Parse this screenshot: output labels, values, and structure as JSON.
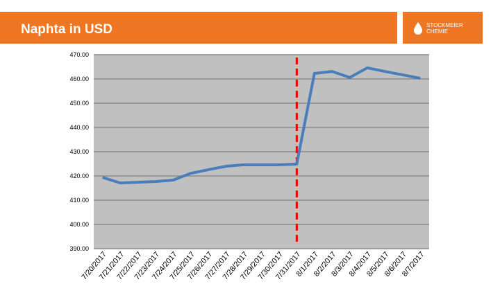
{
  "header": {
    "title": "Naphta in USD",
    "logo_line1": "STOCKMEIER",
    "logo_line2": "CHEMIE"
  },
  "chart_data": {
    "type": "line",
    "categories": [
      "7/20/2017",
      "7/21/2017",
      "7/22/2017",
      "7/23/2017",
      "7/24/2017",
      "7/25/2017",
      "7/26/2017",
      "7/27/2017",
      "7/28/2017",
      "7/29/2017",
      "7/30/2017",
      "7/31/2017",
      "8/1/2017",
      "8/2/2017",
      "8/3/2017",
      "8/4/2017",
      "8/5/2017",
      "8/6/2017",
      "8/7/2017"
    ],
    "values": [
      419.4,
      417.1,
      417.4,
      417.7,
      418.3,
      421.1,
      422.6,
      424.0,
      424.6,
      424.6,
      424.6,
      424.9,
      462.3,
      463.1,
      460.6,
      464.6,
      463.1,
      461.7,
      460.3
    ],
    "color": "#4a7ebb",
    "ylim": [
      390,
      470
    ],
    "yticks": [
      {
        "value": 390,
        "label": "390.00"
      },
      {
        "value": 400,
        "label": "400.00"
      },
      {
        "value": 410,
        "label": "410.00"
      },
      {
        "value": 420,
        "label": "420.00"
      },
      {
        "value": 430,
        "label": "430.00"
      },
      {
        "value": 440,
        "label": "440.00"
      },
      {
        "value": 450,
        "label": "450.00"
      },
      {
        "value": 460,
        "label": "460.00"
      },
      {
        "value": 470,
        "label": "470.00"
      }
    ],
    "grid": true
  }
}
